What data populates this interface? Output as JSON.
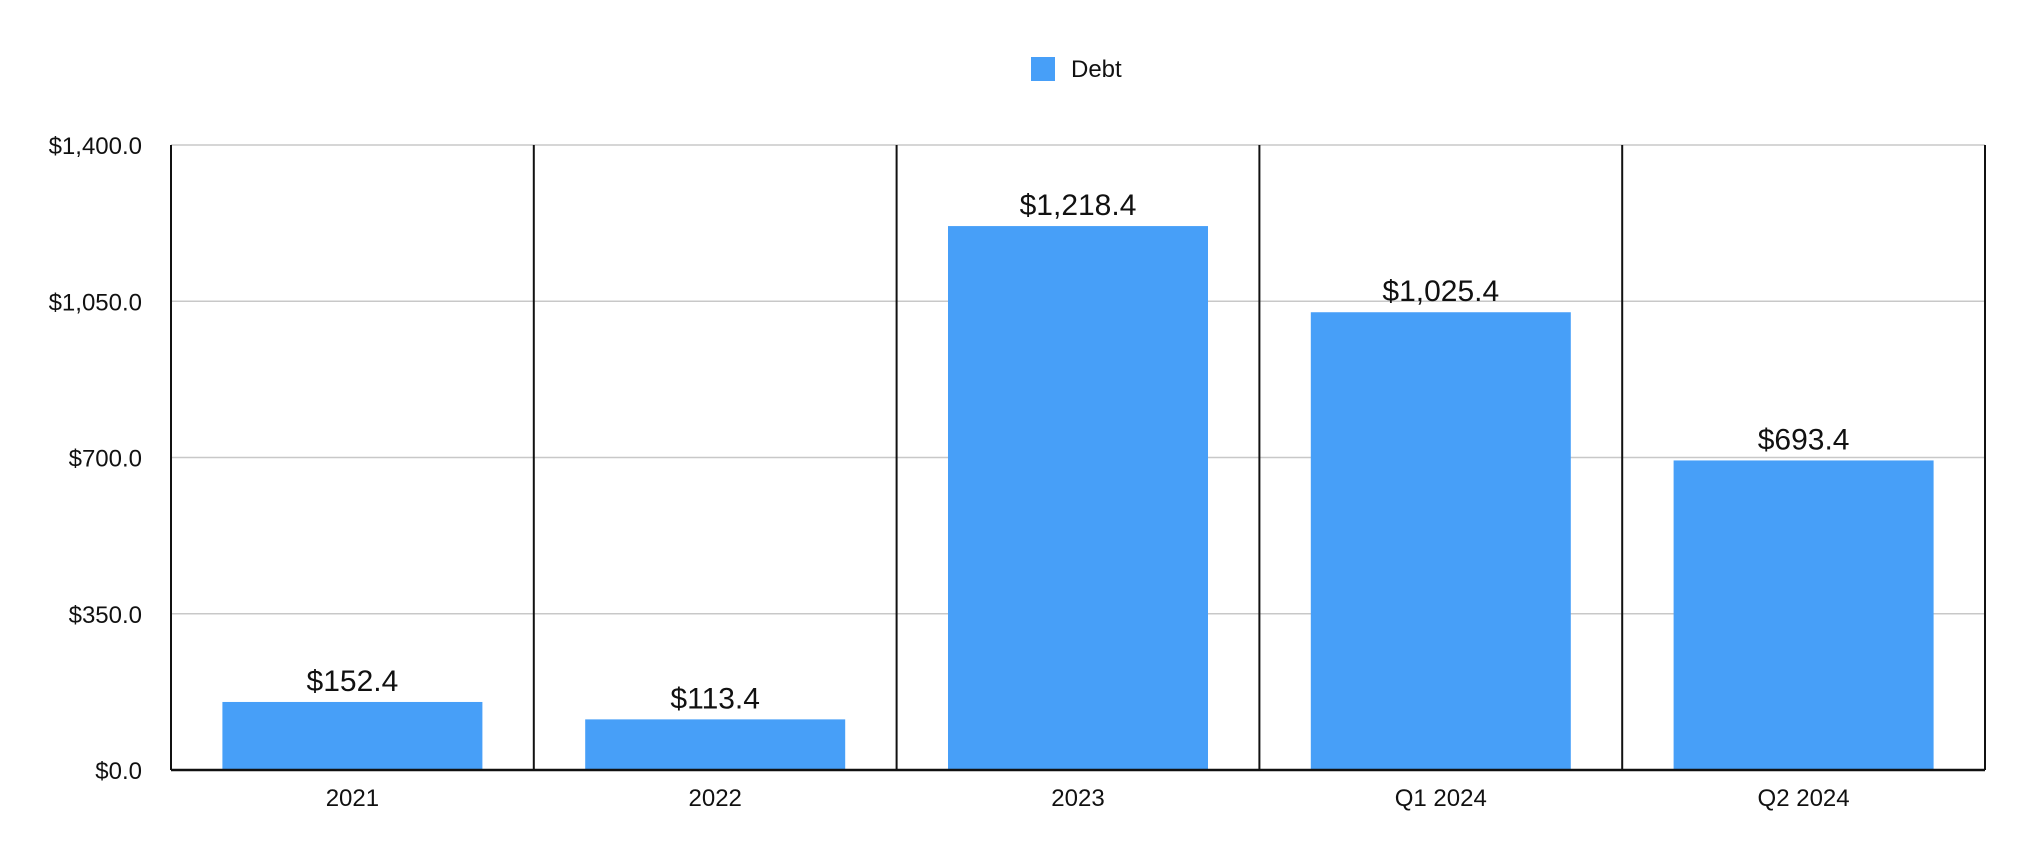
{
  "chart_data": {
    "type": "bar",
    "categories": [
      "2021",
      "2022",
      "2023",
      "Q1 2024",
      "Q2 2024"
    ],
    "series": [
      {
        "name": "Debt",
        "values": [
          152.4,
          113.4,
          1218.4,
          1025.4,
          693.4
        ],
        "color": "#479FF8"
      }
    ],
    "data_labels": [
      "$152.4",
      "$113.4",
      "$1,218.4",
      "$1,025.4",
      "$693.4"
    ],
    "y_ticks": [
      0,
      350,
      700,
      1050,
      1400
    ],
    "y_tick_labels": [
      "$0.0",
      "$350.0",
      "$700.0",
      "$1,050.0",
      "$1,400.0"
    ],
    "ylim": [
      0,
      1400
    ],
    "title": "",
    "xlabel": "",
    "ylabel": "",
    "grid": true,
    "legend": "top-center"
  }
}
